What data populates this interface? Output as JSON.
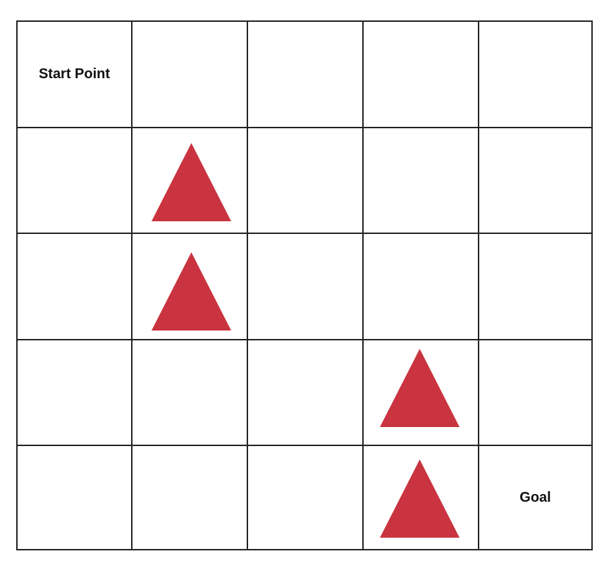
{
  "grid": {
    "rows": 5,
    "cols": 5,
    "line_color": "#222222"
  },
  "labels": {
    "start": "Start Point",
    "goal": "Goal"
  },
  "start_cell": {
    "row": 0,
    "col": 0
  },
  "goal_cell": {
    "row": 4,
    "col": 4
  },
  "obstacle_color": "#c93440",
  "obstacles": [
    {
      "row": 1,
      "col": 1,
      "icon": "triangle-obstacle-icon"
    },
    {
      "row": 2,
      "col": 1,
      "icon": "triangle-obstacle-icon"
    },
    {
      "row": 3,
      "col": 3,
      "icon": "triangle-obstacle-icon"
    },
    {
      "row": 4,
      "col": 3,
      "icon": "triangle-obstacle-icon"
    }
  ]
}
